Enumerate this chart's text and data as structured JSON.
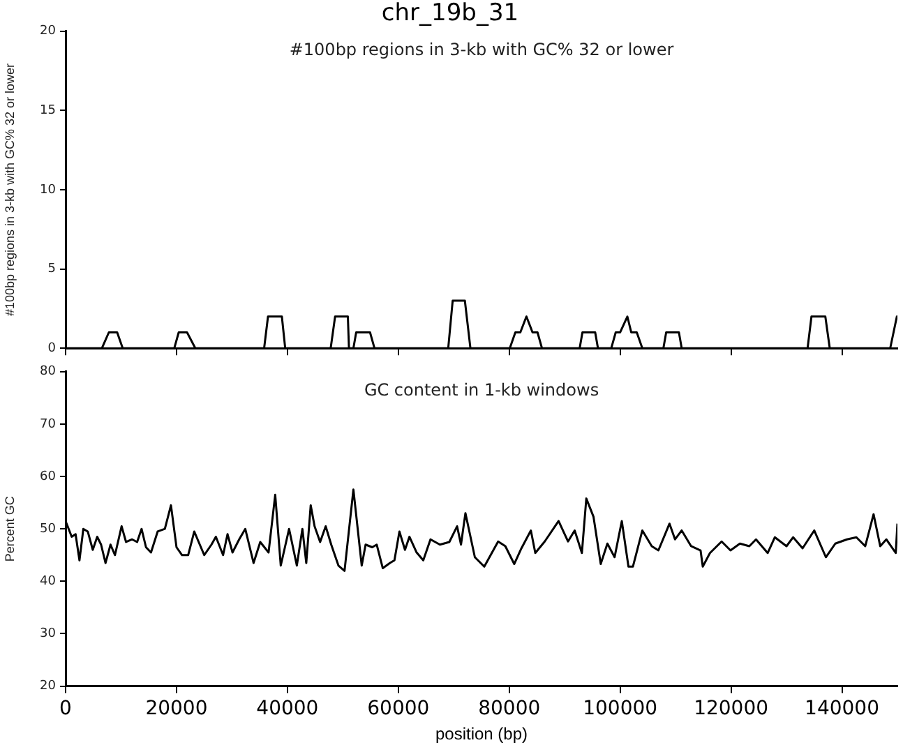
{
  "chart_data": [
    {
      "type": "line",
      "title": "chr_19b_31",
      "ylabel": "#100bp regions in 3-kb with GC% 32 or lower",
      "annotations": [
        "#100bp regions in 3-kb with GC% 32 or lower"
      ],
      "xlim": [
        0,
        150000
      ],
      "xticks": [
        0,
        20000,
        40000,
        60000,
        80000,
        100000,
        120000,
        140000
      ],
      "ylim": [
        0,
        20
      ],
      "yticks": [
        0,
        5,
        10,
        15,
        20
      ],
      "tick_labels": "y",
      "grid": false,
      "legend": false,
      "marker": "none",
      "line_style": "solid",
      "series": [
        {
          "color": "#000000",
          "x": [
            0,
            6550,
            7800,
            9300,
            10300,
            19600,
            20400,
            21900,
            23400,
            35800,
            36500,
            39000,
            39600,
            47800,
            48600,
            50900,
            51100,
            51900,
            52400,
            54900,
            55700,
            69000,
            69800,
            72000,
            73000,
            80100,
            81100,
            82000,
            83100,
            84200,
            85100,
            85900,
            92700,
            93200,
            95500,
            96000,
            98400,
            99200,
            100000,
            101300,
            102000,
            103000,
            104000,
            107800,
            108300,
            110600,
            111100,
            133800,
            134500,
            137000,
            137800,
            148700,
            149900,
            150000
          ],
          "values": [
            0,
            0,
            1,
            1,
            0,
            0,
            1,
            1,
            0,
            0,
            2,
            2,
            0,
            0,
            2,
            2,
            0,
            0,
            1,
            1,
            0,
            0,
            3,
            3,
            0,
            0,
            1,
            1,
            2,
            1,
            1,
            0,
            0,
            1,
            1,
            0,
            0,
            1,
            1,
            2,
            1,
            1,
            0,
            0,
            1,
            1,
            0,
            0,
            2,
            2,
            0,
            0,
            2,
            2
          ]
        }
      ]
    },
    {
      "type": "line",
      "xlabel": "position (bp)",
      "ylabel": "Percent GC",
      "annotations": [
        "GC content in 1-kb windows"
      ],
      "xlim": [
        0,
        150000
      ],
      "xticks": [
        0,
        20000,
        40000,
        60000,
        80000,
        100000,
        120000,
        140000
      ],
      "ylim": [
        20,
        80
      ],
      "yticks": [
        20,
        30,
        40,
        50,
        60,
        70,
        80
      ],
      "grid": false,
      "legend": false,
      "marker": "none",
      "line_style": "solid",
      "series": [
        {
          "color": "#000000",
          "x": [
            0,
            1100,
            1800,
            2500,
            3200,
            4000,
            4900,
            5700,
            6400,
            7200,
            8100,
            8900,
            10100,
            10900,
            12000,
            12900,
            13700,
            14500,
            15400,
            16600,
            17900,
            19000,
            20000,
            21000,
            22100,
            23200,
            24200,
            25000,
            26300,
            27100,
            28400,
            29200,
            30100,
            31300,
            32400,
            33900,
            35100,
            36600,
            37800,
            38800,
            40300,
            41700,
            42700,
            43400,
            44200,
            44900,
            45900,
            46900,
            47900,
            49200,
            50300,
            51900,
            53400,
            54100,
            55300,
            56100,
            57200,
            58500,
            59300,
            60200,
            61200,
            62000,
            63300,
            64500,
            65800,
            67500,
            69200,
            70600,
            71300,
            72100,
            73800,
            75500,
            78000,
            79300,
            80900,
            82200,
            83900,
            84700,
            86400,
            88900,
            90600,
            91800,
            93100,
            93900,
            95200,
            96500,
            97700,
            99000,
            100300,
            101500,
            102300,
            104000,
            105700,
            106900,
            108900,
            109900,
            111100,
            112800,
            114500,
            114900,
            116200,
            118300,
            119900,
            121600,
            123300,
            124500,
            126600,
            127900,
            130000,
            131200,
            132900,
            135000,
            137100,
            138800,
            140900,
            142600,
            144200,
            145700,
            146900,
            148000,
            149700,
            150000
          ],
          "values": [
            51.5,
            48.5,
            49,
            44,
            50,
            49.5,
            46,
            48.5,
            47,
            43.5,
            47,
            45,
            50.5,
            47.5,
            48,
            47.5,
            50,
            46.5,
            45.5,
            49.5,
            50,
            54.5,
            46.5,
            45,
            45,
            49.5,
            47,
            45,
            47,
            48.5,
            45,
            49,
            45.5,
            48,
            50,
            43.5,
            47.5,
            45.5,
            56.5,
            43,
            50,
            43,
            50,
            43.5,
            54.5,
            50.5,
            47.5,
            50.5,
            47,
            43,
            42,
            57.5,
            43,
            47,
            46.5,
            47,
            42.5,
            43.5,
            44,
            49.5,
            46,
            48.5,
            45.5,
            44,
            48,
            47,
            47.5,
            50.5,
            47,
            53,
            44.6,
            42.8,
            47.6,
            46.7,
            43.3,
            46.3,
            49.7,
            45.4,
            47.6,
            51.5,
            47.6,
            49.7,
            45.4,
            55.8,
            52.3,
            43.3,
            47.2,
            44.6,
            51.5,
            42.8,
            42.8,
            49.7,
            46.7,
            45.9,
            51,
            48,
            49.7,
            46.7,
            45.9,
            42.8,
            45.4,
            47.6,
            45.9,
            47.2,
            46.7,
            48,
            45.4,
            48.4,
            46.7,
            48.4,
            46.3,
            49.7,
            44.6,
            47.2,
            48,
            48.4,
            46.7,
            52.8,
            46.7,
            48,
            45.4,
            51
          ]
        }
      ]
    }
  ]
}
